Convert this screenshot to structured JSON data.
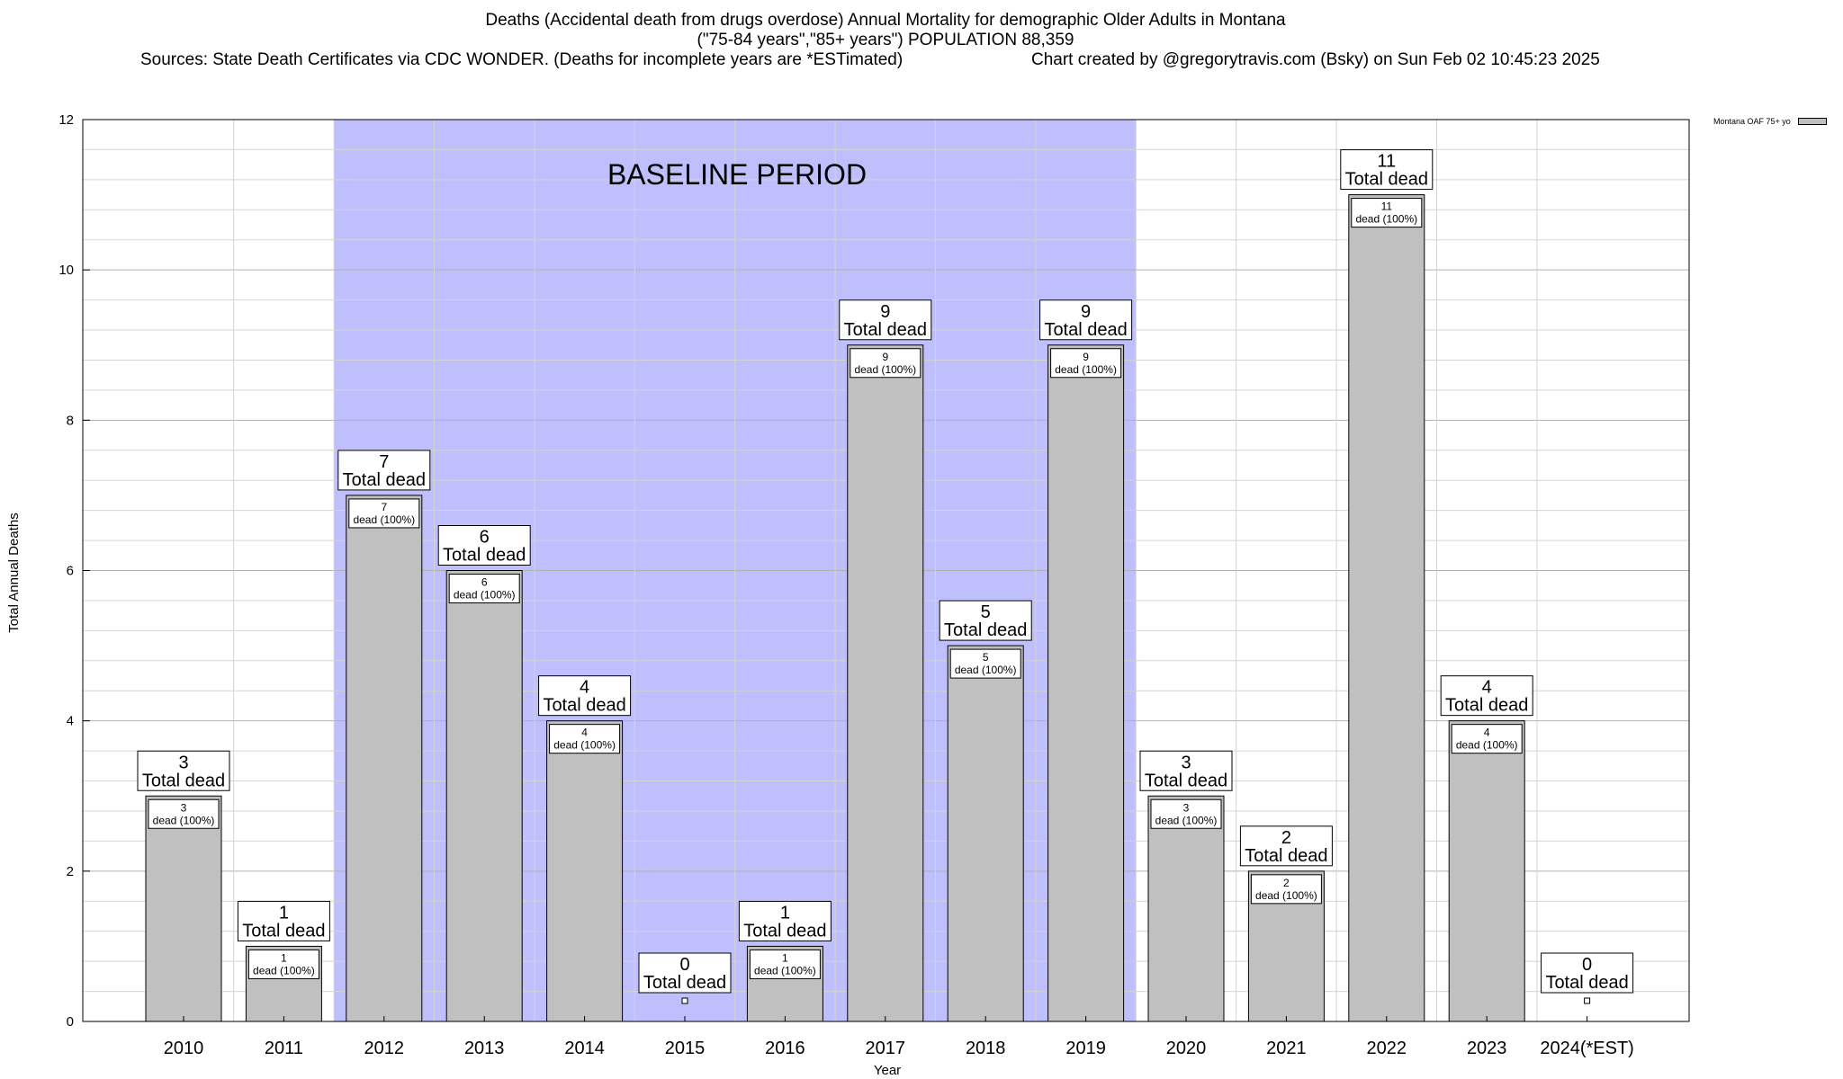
{
  "chart_data": {
    "type": "bar",
    "title": "Deaths (Accidental death from drugs overdose) Annual Mortality for demographic Older Adults in Montana",
    "subtitle": "(\"75-84 years\",\"85+ years\") POPULATION 88,359",
    "sources": "Sources: State Death Certificates via CDC WONDER. (Deaths for incomplete years are *ESTimated)",
    "credit": "Chart created by @gregorytravis.com (Bsky) on Sun Feb 02 10:45:23 2025",
    "xlabel": "Year",
    "ylabel": "Total Annual Deaths",
    "ylim": [
      0,
      12
    ],
    "yticks": [
      0,
      2,
      4,
      6,
      8,
      10,
      12
    ],
    "categories": [
      "2010",
      "2011",
      "2012",
      "2013",
      "2014",
      "2015",
      "2016",
      "2017",
      "2018",
      "2019",
      "2020",
      "2021",
      "2022",
      "2023",
      "2024(*EST)"
    ],
    "series": [
      {
        "name": "Montana OAF 75+ yo",
        "values": [
          3,
          1,
          7,
          6,
          4,
          0,
          1,
          9,
          5,
          9,
          3,
          2,
          11,
          4,
          0
        ]
      }
    ],
    "total_label": "Total dead",
    "inner_label": "dead (100%)",
    "baseline": {
      "label": "BASELINE PERIOD",
      "from": "2012",
      "to": "2019"
    },
    "grid": true,
    "legend_position": "top-right",
    "colors": {
      "bar": "#c0c0c0",
      "baseline": "#bfbffe"
    }
  }
}
